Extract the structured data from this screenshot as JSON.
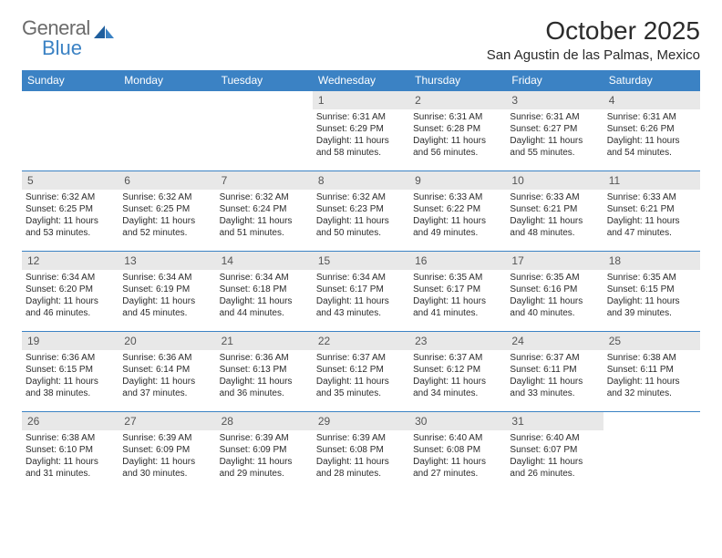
{
  "brand": {
    "part1": "General",
    "part2": "Blue"
  },
  "title": "October 2025",
  "location": "San Agustin de las Palmas, Mexico",
  "colors": {
    "header_bg": "#3b82c4",
    "header_text": "#ffffff",
    "daynum_bg": "#e8e8e8",
    "daynum_text": "#555555",
    "body_text": "#2b2b2b",
    "row_border": "#3b82c4",
    "logo_gray": "#6b6b6b",
    "logo_blue": "#3b82c4"
  },
  "weekdays": [
    "Sunday",
    "Monday",
    "Tuesday",
    "Wednesday",
    "Thursday",
    "Friday",
    "Saturday"
  ],
  "weeks": [
    [
      null,
      null,
      null,
      {
        "n": "1",
        "sunrise": "6:31 AM",
        "sunset": "6:29 PM",
        "day_h": "11",
        "day_m": "58"
      },
      {
        "n": "2",
        "sunrise": "6:31 AM",
        "sunset": "6:28 PM",
        "day_h": "11",
        "day_m": "56"
      },
      {
        "n": "3",
        "sunrise": "6:31 AM",
        "sunset": "6:27 PM",
        "day_h": "11",
        "day_m": "55"
      },
      {
        "n": "4",
        "sunrise": "6:31 AM",
        "sunset": "6:26 PM",
        "day_h": "11",
        "day_m": "54"
      }
    ],
    [
      {
        "n": "5",
        "sunrise": "6:32 AM",
        "sunset": "6:25 PM",
        "day_h": "11",
        "day_m": "53"
      },
      {
        "n": "6",
        "sunrise": "6:32 AM",
        "sunset": "6:25 PM",
        "day_h": "11",
        "day_m": "52"
      },
      {
        "n": "7",
        "sunrise": "6:32 AM",
        "sunset": "6:24 PM",
        "day_h": "11",
        "day_m": "51"
      },
      {
        "n": "8",
        "sunrise": "6:32 AM",
        "sunset": "6:23 PM",
        "day_h": "11",
        "day_m": "50"
      },
      {
        "n": "9",
        "sunrise": "6:33 AM",
        "sunset": "6:22 PM",
        "day_h": "11",
        "day_m": "49"
      },
      {
        "n": "10",
        "sunrise": "6:33 AM",
        "sunset": "6:21 PM",
        "day_h": "11",
        "day_m": "48"
      },
      {
        "n": "11",
        "sunrise": "6:33 AM",
        "sunset": "6:21 PM",
        "day_h": "11",
        "day_m": "47"
      }
    ],
    [
      {
        "n": "12",
        "sunrise": "6:34 AM",
        "sunset": "6:20 PM",
        "day_h": "11",
        "day_m": "46"
      },
      {
        "n": "13",
        "sunrise": "6:34 AM",
        "sunset": "6:19 PM",
        "day_h": "11",
        "day_m": "45"
      },
      {
        "n": "14",
        "sunrise": "6:34 AM",
        "sunset": "6:18 PM",
        "day_h": "11",
        "day_m": "44"
      },
      {
        "n": "15",
        "sunrise": "6:34 AM",
        "sunset": "6:17 PM",
        "day_h": "11",
        "day_m": "43"
      },
      {
        "n": "16",
        "sunrise": "6:35 AM",
        "sunset": "6:17 PM",
        "day_h": "11",
        "day_m": "41"
      },
      {
        "n": "17",
        "sunrise": "6:35 AM",
        "sunset": "6:16 PM",
        "day_h": "11",
        "day_m": "40"
      },
      {
        "n": "18",
        "sunrise": "6:35 AM",
        "sunset": "6:15 PM",
        "day_h": "11",
        "day_m": "39"
      }
    ],
    [
      {
        "n": "19",
        "sunrise": "6:36 AM",
        "sunset": "6:15 PM",
        "day_h": "11",
        "day_m": "38"
      },
      {
        "n": "20",
        "sunrise": "6:36 AM",
        "sunset": "6:14 PM",
        "day_h": "11",
        "day_m": "37"
      },
      {
        "n": "21",
        "sunrise": "6:36 AM",
        "sunset": "6:13 PM",
        "day_h": "11",
        "day_m": "36"
      },
      {
        "n": "22",
        "sunrise": "6:37 AM",
        "sunset": "6:12 PM",
        "day_h": "11",
        "day_m": "35"
      },
      {
        "n": "23",
        "sunrise": "6:37 AM",
        "sunset": "6:12 PM",
        "day_h": "11",
        "day_m": "34"
      },
      {
        "n": "24",
        "sunrise": "6:37 AM",
        "sunset": "6:11 PM",
        "day_h": "11",
        "day_m": "33"
      },
      {
        "n": "25",
        "sunrise": "6:38 AM",
        "sunset": "6:11 PM",
        "day_h": "11",
        "day_m": "32"
      }
    ],
    [
      {
        "n": "26",
        "sunrise": "6:38 AM",
        "sunset": "6:10 PM",
        "day_h": "11",
        "day_m": "31"
      },
      {
        "n": "27",
        "sunrise": "6:39 AM",
        "sunset": "6:09 PM",
        "day_h": "11",
        "day_m": "30"
      },
      {
        "n": "28",
        "sunrise": "6:39 AM",
        "sunset": "6:09 PM",
        "day_h": "11",
        "day_m": "29"
      },
      {
        "n": "29",
        "sunrise": "6:39 AM",
        "sunset": "6:08 PM",
        "day_h": "11",
        "day_m": "28"
      },
      {
        "n": "30",
        "sunrise": "6:40 AM",
        "sunset": "6:08 PM",
        "day_h": "11",
        "day_m": "27"
      },
      {
        "n": "31",
        "sunrise": "6:40 AM",
        "sunset": "6:07 PM",
        "day_h": "11",
        "day_m": "26"
      },
      null
    ]
  ]
}
